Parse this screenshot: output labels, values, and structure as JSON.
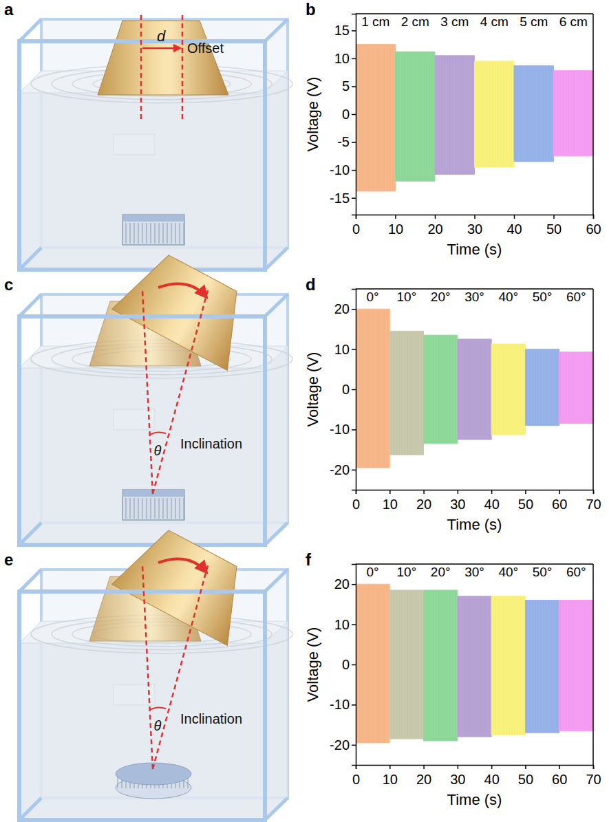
{
  "diagrams": [
    {
      "panel": "a",
      "symbol": "d",
      "caption": "Offset"
    },
    {
      "panel": "c",
      "symbol": "θ",
      "caption": "Inclination"
    },
    {
      "panel": "e",
      "symbol": "θ",
      "caption": "Inclination"
    }
  ],
  "chart_data": [
    {
      "panel": "b",
      "type": "range_area",
      "x_label": "Time (s)",
      "y_label": "Voltage (V)",
      "xlim": [
        0,
        60
      ],
      "xticks": [
        0,
        10,
        20,
        30,
        40,
        50,
        60
      ],
      "ylim": [
        -18,
        18
      ],
      "yticks": [
        -15,
        -10,
        -5,
        0,
        5,
        10,
        15
      ],
      "series": [
        {
          "name": "1 cm",
          "color": "#f9b88a",
          "x": [
            0,
            10
          ],
          "high": [
            12.5,
            12.5
          ],
          "low": [
            -13.8,
            -13.8
          ]
        },
        {
          "name": "2 cm",
          "color": "#8fd99a",
          "x": [
            10,
            20
          ],
          "high": [
            11.2,
            11.2
          ],
          "low": [
            -12,
            -12
          ]
        },
        {
          "name": "3 cm",
          "color": "#b9a4d6",
          "x": [
            20,
            30
          ],
          "high": [
            10.5,
            10.5
          ],
          "low": [
            -10.8,
            -10.8
          ]
        },
        {
          "name": "4 cm",
          "color": "#f8f27c",
          "x": [
            30,
            40
          ],
          "high": [
            9.5,
            9.5
          ],
          "low": [
            -9.5,
            -9.5
          ]
        },
        {
          "name": "5 cm",
          "color": "#97b3ea",
          "x": [
            40,
            50
          ],
          "high": [
            8.7,
            8.7
          ],
          "low": [
            -8.5,
            -8.5
          ]
        },
        {
          "name": "6 cm",
          "color": "#f59df2",
          "x": [
            50,
            60
          ],
          "high": [
            7.8,
            7.8
          ],
          "low": [
            -7.5,
            -7.5
          ]
        }
      ]
    },
    {
      "panel": "d",
      "type": "range_area",
      "x_label": "Time (s)",
      "y_label": "Voltage (V)",
      "xlim": [
        0,
        70
      ],
      "xticks": [
        0,
        10,
        20,
        30,
        40,
        50,
        60,
        70
      ],
      "ylim": [
        -25,
        25
      ],
      "yticks": [
        -20,
        -10,
        0,
        10,
        20
      ],
      "series": [
        {
          "name": "0°",
          "color": "#f9b88a",
          "x": [
            0,
            10
          ],
          "high": [
            20,
            20
          ],
          "low": [
            -19.5,
            -19.5
          ]
        },
        {
          "name": "10°",
          "color": "#c9c9ad",
          "x": [
            10,
            20
          ],
          "high": [
            14.5,
            14.5
          ],
          "low": [
            -16.3,
            -16.3
          ]
        },
        {
          "name": "20°",
          "color": "#8fd99a",
          "x": [
            20,
            30
          ],
          "high": [
            13.5,
            13.5
          ],
          "low": [
            -13.5,
            -13.5
          ]
        },
        {
          "name": "30°",
          "color": "#b9a4d6",
          "x": [
            30,
            40
          ],
          "high": [
            12.5,
            12.5
          ],
          "low": [
            -12.5,
            -12.5
          ]
        },
        {
          "name": "40°",
          "color": "#f8f27c",
          "x": [
            40,
            50
          ],
          "high": [
            11.3,
            11.3
          ],
          "low": [
            -11.3,
            -11.3
          ]
        },
        {
          "name": "50°",
          "color": "#97b3ea",
          "x": [
            50,
            60
          ],
          "high": [
            10,
            10
          ],
          "low": [
            -9,
            -9
          ]
        },
        {
          "name": "60°",
          "color": "#f59df2",
          "x": [
            60,
            70
          ],
          "high": [
            9.3,
            9.3
          ],
          "low": [
            -8.5,
            -8.5
          ]
        }
      ]
    },
    {
      "panel": "f",
      "type": "range_area",
      "x_label": "Time (s)",
      "y_label": "Voltage (V)",
      "xlim": [
        0,
        70
      ],
      "xticks": [
        0,
        10,
        20,
        30,
        40,
        50,
        60,
        70
      ],
      "ylim": [
        -25,
        25
      ],
      "yticks": [
        -20,
        -10,
        0,
        10,
        20
      ],
      "series": [
        {
          "name": "0°",
          "color": "#f9b88a",
          "x": [
            0,
            10
          ],
          "high": [
            20,
            20
          ],
          "low": [
            -19.5,
            -19.5
          ]
        },
        {
          "name": "10°",
          "color": "#c9c9ad",
          "x": [
            10,
            20
          ],
          "high": [
            18.5,
            18.5
          ],
          "low": [
            -18.5,
            -18.5
          ]
        },
        {
          "name": "20°",
          "color": "#8fd99a",
          "x": [
            20,
            30
          ],
          "high": [
            18.5,
            18.5
          ],
          "low": [
            -19,
            -19
          ]
        },
        {
          "name": "30°",
          "color": "#b9a4d6",
          "x": [
            30,
            40
          ],
          "high": [
            17,
            17
          ],
          "low": [
            -18,
            -18
          ]
        },
        {
          "name": "40°",
          "color": "#f8f27c",
          "x": [
            40,
            50
          ],
          "high": [
            17,
            17
          ],
          "low": [
            -17.5,
            -17.5
          ]
        },
        {
          "name": "50°",
          "color": "#97b3ea",
          "x": [
            50,
            60
          ],
          "high": [
            16,
            16
          ],
          "low": [
            -17,
            -17
          ]
        },
        {
          "name": "60°",
          "color": "#f59df2",
          "x": [
            60,
            70
          ],
          "high": [
            16,
            16
          ],
          "low": [
            -16.5,
            -16.5
          ]
        }
      ]
    }
  ]
}
